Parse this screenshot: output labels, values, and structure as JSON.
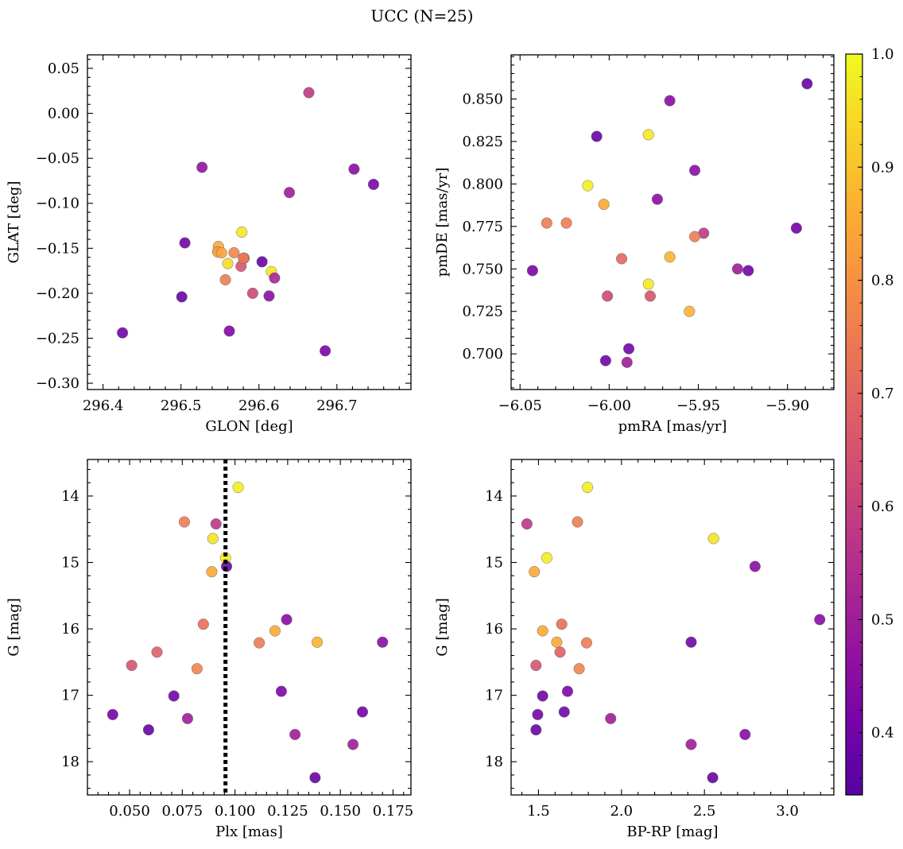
{
  "suptitle": "UCC (N=25)",
  "colorbar": {
    "min": 0.345,
    "max": 1.0,
    "ticks": [
      0.4,
      0.5,
      0.6,
      0.7,
      0.8,
      0.9,
      1.0
    ],
    "tick_labels": [
      "0.4",
      "0.5",
      "0.6",
      "0.7",
      "0.8",
      "0.9",
      "1.0"
    ],
    "colormap": "plasma"
  },
  "chart_data": [
    {
      "type": "scatter",
      "xlabel": "GLON [deg]",
      "ylabel": "GLAT [deg]",
      "xlim": [
        296.38,
        296.795
      ],
      "ylim": [
        -0.307,
        0.065
      ],
      "xticks": [
        296.4,
        296.5,
        296.6,
        296.7
      ],
      "xtick_labels": [
        "296.4",
        "296.5",
        "296.6",
        "296.7"
      ],
      "yticks": [
        0.05,
        0.0,
        -0.05,
        -0.1,
        -0.15,
        -0.2,
        -0.25,
        -0.3
      ],
      "ytick_labels": [
        "0.05",
        "0.00",
        "−0.05",
        "−0.10",
        "−0.15",
        "−0.20",
        "−0.25",
        "−0.30"
      ],
      "points": [
        {
          "x": 296.664,
          "y": 0.023,
          "c": 0.58
        },
        {
          "x": 296.527,
          "y": -0.06,
          "c": 0.47
        },
        {
          "x": 296.722,
          "y": -0.062,
          "c": 0.45
        },
        {
          "x": 296.747,
          "y": -0.079,
          "c": 0.42
        },
        {
          "x": 296.639,
          "y": -0.088,
          "c": 0.5
        },
        {
          "x": 296.578,
          "y": -0.132,
          "c": 0.97
        },
        {
          "x": 296.505,
          "y": -0.144,
          "c": 0.4
        },
        {
          "x": 296.548,
          "y": -0.148,
          "c": 0.85
        },
        {
          "x": 296.547,
          "y": -0.154,
          "c": 0.82
        },
        {
          "x": 296.552,
          "y": -0.155,
          "c": 0.84
        },
        {
          "x": 296.568,
          "y": -0.155,
          "c": 0.77
        },
        {
          "x": 296.581,
          "y": -0.161,
          "c": 0.72
        },
        {
          "x": 296.604,
          "y": -0.165,
          "c": 0.38
        },
        {
          "x": 296.56,
          "y": -0.167,
          "c": 0.95
        },
        {
          "x": 296.577,
          "y": -0.17,
          "c": 0.65
        },
        {
          "x": 296.616,
          "y": -0.176,
          "c": 0.97
        },
        {
          "x": 296.62,
          "y": -0.183,
          "c": 0.52
        },
        {
          "x": 296.557,
          "y": -0.185,
          "c": 0.75
        },
        {
          "x": 296.592,
          "y": -0.2,
          "c": 0.62
        },
        {
          "x": 296.613,
          "y": -0.203,
          "c": 0.45
        },
        {
          "x": 296.501,
          "y": -0.204,
          "c": 0.38
        },
        {
          "x": 296.425,
          "y": -0.244,
          "c": 0.4
        },
        {
          "x": 296.562,
          "y": -0.242,
          "c": 0.43
        },
        {
          "x": 296.685,
          "y": -0.264,
          "c": 0.42
        },
        {
          "x": 296.58,
          "y": -0.161,
          "c": 0.74
        }
      ]
    },
    {
      "type": "scatter",
      "xlabel": "pmRA [mas/yr]",
      "ylabel": "pmDE [mas/yr]",
      "xlim": [
        -6.055,
        -5.874
      ],
      "ylim": [
        0.679,
        0.876
      ],
      "xticks": [
        -6.05,
        -6.0,
        -5.95,
        -5.9
      ],
      "xtick_labels": [
        "−6.05",
        "−6.00",
        "−5.95",
        "−5.90"
      ],
      "yticks": [
        0.7,
        0.725,
        0.75,
        0.775,
        0.8,
        0.825,
        0.85
      ],
      "ytick_labels": [
        "0.700",
        "0.725",
        "0.750",
        "0.775",
        "0.800",
        "0.825",
        "0.850"
      ],
      "points": [
        {
          "x": -5.889,
          "y": 0.859,
          "c": 0.38
        },
        {
          "x": -5.966,
          "y": 0.849,
          "c": 0.45
        },
        {
          "x": -6.007,
          "y": 0.828,
          "c": 0.38
        },
        {
          "x": -5.978,
          "y": 0.829,
          "c": 0.97
        },
        {
          "x": -5.952,
          "y": 0.808,
          "c": 0.45
        },
        {
          "x": -6.012,
          "y": 0.799,
          "c": 0.98
        },
        {
          "x": -5.973,
          "y": 0.791,
          "c": 0.45
        },
        {
          "x": -6.003,
          "y": 0.788,
          "c": 0.85
        },
        {
          "x": -6.035,
          "y": 0.777,
          "c": 0.75
        },
        {
          "x": -6.024,
          "y": 0.777,
          "c": 0.75
        },
        {
          "x": -5.895,
          "y": 0.774,
          "c": 0.4
        },
        {
          "x": -5.947,
          "y": 0.771,
          "c": 0.58
        },
        {
          "x": -5.952,
          "y": 0.769,
          "c": 0.75
        },
        {
          "x": -5.966,
          "y": 0.757,
          "c": 0.87
        },
        {
          "x": -5.993,
          "y": 0.756,
          "c": 0.7
        },
        {
          "x": -5.928,
          "y": 0.75,
          "c": 0.5
        },
        {
          "x": -5.922,
          "y": 0.749,
          "c": 0.4
        },
        {
          "x": -6.043,
          "y": 0.749,
          "c": 0.42
        },
        {
          "x": -5.978,
          "y": 0.741,
          "c": 0.97
        },
        {
          "x": -6.001,
          "y": 0.734,
          "c": 0.62
        },
        {
          "x": -5.977,
          "y": 0.734,
          "c": 0.65
        },
        {
          "x": -5.955,
          "y": 0.725,
          "c": 0.87
        },
        {
          "x": -5.989,
          "y": 0.703,
          "c": 0.4
        },
        {
          "x": -6.002,
          "y": 0.696,
          "c": 0.4
        },
        {
          "x": -5.99,
          "y": 0.695,
          "c": 0.5
        }
      ]
    },
    {
      "type": "scatter",
      "xlabel": "Plx [mas]",
      "ylabel": "G [mag]",
      "xlim": [
        0.03,
        0.1835
      ],
      "ylim": [
        18.5,
        13.45
      ],
      "xticks": [
        0.05,
        0.075,
        0.1,
        0.125,
        0.15,
        0.175
      ],
      "xtick_labels": [
        "0.050",
        "0.075",
        "0.100",
        "0.125",
        "0.150",
        "0.175"
      ],
      "yticks": [
        14,
        15,
        16,
        17,
        18
      ],
      "ytick_labels": [
        "14",
        "15",
        "16",
        "17",
        "18"
      ],
      "vline": {
        "x": 0.0955,
        "style": "dotted"
      },
      "points": [
        {
          "x": 0.1015,
          "y": 13.87,
          "c": 0.98
        },
        {
          "x": 0.076,
          "y": 14.39,
          "c": 0.75
        },
        {
          "x": 0.091,
          "y": 14.42,
          "c": 0.57
        },
        {
          "x": 0.0895,
          "y": 14.64,
          "c": 0.96
        },
        {
          "x": 0.0955,
          "y": 14.93,
          "c": 0.98
        },
        {
          "x": 0.096,
          "y": 15.06,
          "c": 0.38
        },
        {
          "x": 0.089,
          "y": 15.14,
          "c": 0.85
        },
        {
          "x": 0.1245,
          "y": 15.86,
          "c": 0.45
        },
        {
          "x": 0.085,
          "y": 15.93,
          "c": 0.72
        },
        {
          "x": 0.119,
          "y": 16.03,
          "c": 0.85
        },
        {
          "x": 0.139,
          "y": 16.2,
          "c": 0.87
        },
        {
          "x": 0.1115,
          "y": 16.21,
          "c": 0.75
        },
        {
          "x": 0.17,
          "y": 16.2,
          "c": 0.45
        },
        {
          "x": 0.063,
          "y": 16.35,
          "c": 0.68
        },
        {
          "x": 0.051,
          "y": 16.55,
          "c": 0.65
        },
        {
          "x": 0.082,
          "y": 16.6,
          "c": 0.77
        },
        {
          "x": 0.122,
          "y": 16.94,
          "c": 0.42
        },
        {
          "x": 0.071,
          "y": 17.01,
          "c": 0.4
        },
        {
          "x": 0.042,
          "y": 17.29,
          "c": 0.4
        },
        {
          "x": 0.0775,
          "y": 17.35,
          "c": 0.5
        },
        {
          "x": 0.1605,
          "y": 17.25,
          "c": 0.4
        },
        {
          "x": 0.059,
          "y": 17.52,
          "c": 0.38
        },
        {
          "x": 0.1285,
          "y": 17.59,
          "c": 0.5
        },
        {
          "x": 0.156,
          "y": 17.74,
          "c": 0.5
        },
        {
          "x": 0.138,
          "y": 18.24,
          "c": 0.38
        }
      ]
    },
    {
      "type": "scatter",
      "xlabel": "BP-RP [mag]",
      "ylabel": "G [mag]",
      "xlim": [
        1.335,
        3.28
      ],
      "ylim": [
        18.5,
        13.45
      ],
      "xticks": [
        1.5,
        2.0,
        2.5,
        3.0
      ],
      "xtick_labels": [
        "1.5",
        "2.0",
        "2.5",
        "3.0"
      ],
      "yticks": [
        14,
        15,
        16,
        17,
        18
      ],
      "ytick_labels": [
        "14",
        "15",
        "16",
        "17",
        "18"
      ],
      "points": [
        {
          "x": 1.795,
          "y": 13.87,
          "c": 0.98
        },
        {
          "x": 1.43,
          "y": 14.42,
          "c": 0.57
        },
        {
          "x": 1.735,
          "y": 14.39,
          "c": 0.75
        },
        {
          "x": 2.555,
          "y": 14.64,
          "c": 0.96
        },
        {
          "x": 1.55,
          "y": 14.93,
          "c": 0.98
        },
        {
          "x": 1.475,
          "y": 15.14,
          "c": 0.85
        },
        {
          "x": 2.805,
          "y": 15.06,
          "c": 0.45
        },
        {
          "x": 3.195,
          "y": 15.86,
          "c": 0.45
        },
        {
          "x": 1.64,
          "y": 15.93,
          "c": 0.72
        },
        {
          "x": 1.525,
          "y": 16.03,
          "c": 0.85
        },
        {
          "x": 1.61,
          "y": 16.2,
          "c": 0.85
        },
        {
          "x": 1.79,
          "y": 16.21,
          "c": 0.75
        },
        {
          "x": 2.42,
          "y": 16.2,
          "c": 0.4
        },
        {
          "x": 1.63,
          "y": 16.35,
          "c": 0.68
        },
        {
          "x": 1.485,
          "y": 16.55,
          "c": 0.65
        },
        {
          "x": 1.745,
          "y": 16.6,
          "c": 0.77
        },
        {
          "x": 1.675,
          "y": 16.94,
          "c": 0.42
        },
        {
          "x": 1.525,
          "y": 17.01,
          "c": 0.4
        },
        {
          "x": 1.495,
          "y": 17.29,
          "c": 0.4
        },
        {
          "x": 1.935,
          "y": 17.35,
          "c": 0.5
        },
        {
          "x": 1.655,
          "y": 17.25,
          "c": 0.4
        },
        {
          "x": 1.485,
          "y": 17.52,
          "c": 0.38
        },
        {
          "x": 2.745,
          "y": 17.59,
          "c": 0.45
        },
        {
          "x": 2.42,
          "y": 17.74,
          "c": 0.5
        },
        {
          "x": 2.55,
          "y": 18.24,
          "c": 0.38
        }
      ]
    }
  ]
}
